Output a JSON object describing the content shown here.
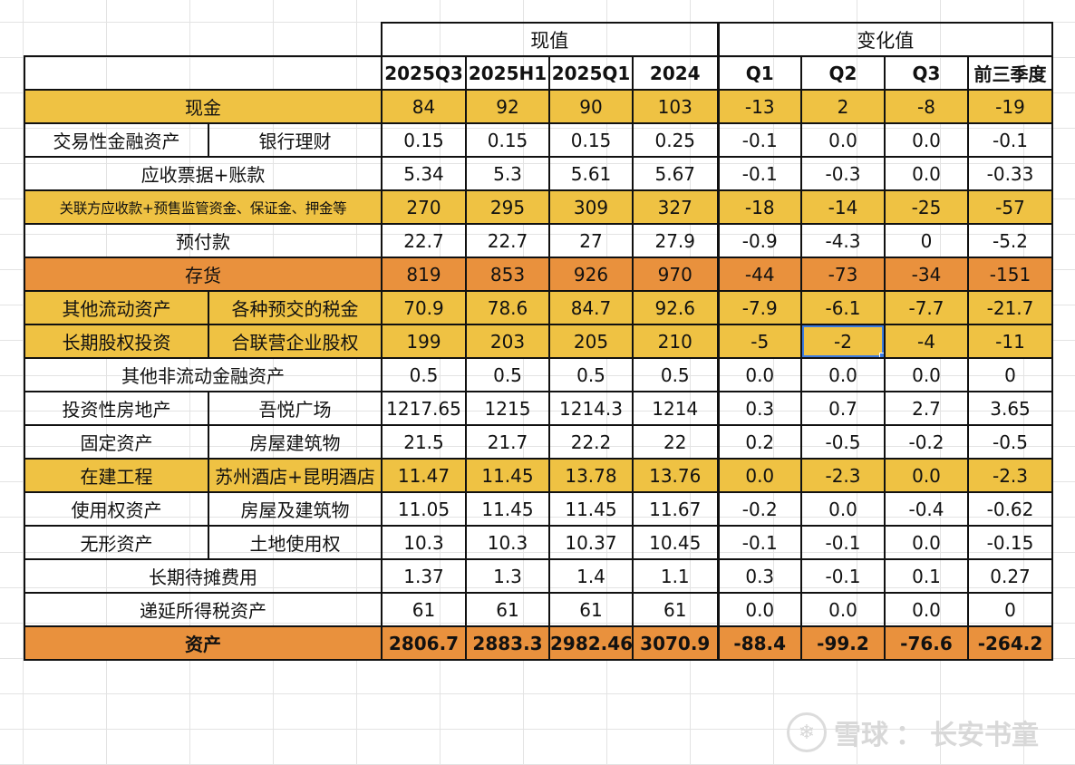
{
  "header": {
    "group_current": "现值",
    "group_change": "变化值",
    "columns": [
      "2025Q3",
      "2025H1",
      "2025Q1",
      "2024",
      "Q1",
      "Q2",
      "Q3",
      "前三季度"
    ]
  },
  "rows": [
    {
      "style": "y",
      "label": "现金",
      "values": [
        "84",
        "92",
        "90",
        "103",
        "-13",
        "2",
        "-8",
        "-19"
      ]
    },
    {
      "style": "w",
      "label": "交易性金融资产",
      "sub": "银行理财",
      "values": [
        "0.15",
        "0.15",
        "0.15",
        "0.25",
        "-0.1",
        "0.0",
        "0.0",
        "-0.1"
      ]
    },
    {
      "style": "w",
      "label": "应收票据+账款",
      "values": [
        "5.34",
        "5.3",
        "5.61",
        "5.67",
        "-0.1",
        "-0.3",
        "0.0",
        "-0.33"
      ]
    },
    {
      "style": "y",
      "label": "关联方应收款+预售监管资金、保证金、押金等",
      "small": true,
      "values": [
        "270",
        "295",
        "309",
        "327",
        "-18",
        "-14",
        "-25",
        "-57"
      ]
    },
    {
      "style": "w",
      "label": "预付款",
      "values": [
        "22.7",
        "22.7",
        "27",
        "27.9",
        "-0.9",
        "-4.3",
        "0",
        "-5.2"
      ]
    },
    {
      "style": "o",
      "label": "存货",
      "values": [
        "819",
        "853",
        "926",
        "970",
        "-44",
        "-73",
        "-34",
        "-151"
      ]
    },
    {
      "style": "y",
      "label": "其他流动资产",
      "sub": "各种预交的税金",
      "values": [
        "70.9",
        "78.6",
        "84.7",
        "92.6",
        "-7.9",
        "-6.1",
        "-7.7",
        "-21.7"
      ]
    },
    {
      "style": "y",
      "label": "长期股权投资",
      "sub": "合联营企业股权",
      "values": [
        "199",
        "203",
        "205",
        "210",
        "-5",
        "-2",
        "-4",
        "-11"
      ]
    },
    {
      "style": "w",
      "label": "其他非流动金融资产",
      "values": [
        "0.5",
        "0.5",
        "0.5",
        "0.5",
        "0.0",
        "0.0",
        "0.0",
        "0"
      ]
    },
    {
      "style": "w",
      "label": "投资性房地产",
      "sub": "吾悦广场",
      "values": [
        "1217.65",
        "1215",
        "1214.3",
        "1214",
        "0.3",
        "0.7",
        "2.7",
        "3.65"
      ]
    },
    {
      "style": "w",
      "label": "固定资产",
      "sub": "房屋建筑物",
      "values": [
        "21.5",
        "21.7",
        "22.2",
        "22",
        "0.2",
        "-0.5",
        "-0.2",
        "-0.5"
      ]
    },
    {
      "style": "y",
      "label": "在建工程",
      "sub": "苏州酒店+昆明酒店",
      "values": [
        "11.47",
        "11.45",
        "13.78",
        "13.76",
        "0.0",
        "-2.3",
        "0.0",
        "-2.3"
      ]
    },
    {
      "style": "w",
      "label": "使用权资产",
      "sub": "房屋及建筑物",
      "values": [
        "11.05",
        "11.45",
        "11.45",
        "11.67",
        "-0.2",
        "0.0",
        "-0.4",
        "-0.62"
      ]
    },
    {
      "style": "w",
      "label": "无形资产",
      "sub": "土地使用权",
      "values": [
        "10.3",
        "10.3",
        "10.37",
        "10.45",
        "-0.1",
        "-0.1",
        "0.0",
        "-0.15"
      ]
    },
    {
      "style": "w",
      "label": "长期待摊费用",
      "values": [
        "1.37",
        "1.3",
        "1.4",
        "1.1",
        "0.3",
        "-0.1",
        "0.1",
        "0.27"
      ]
    },
    {
      "style": "w",
      "label": "递延所得税资产",
      "values": [
        "61",
        "61",
        "61",
        "61",
        "0.0",
        "0.0",
        "0.0",
        "0"
      ]
    },
    {
      "style": "o",
      "label": "资产",
      "total": true,
      "values": [
        "2806.7",
        "2883.3",
        "2982.46",
        "3070.9",
        "-88.4",
        "-99.2",
        "-76.6",
        "-264.2"
      ]
    }
  ],
  "selection": {
    "row": 7,
    "col": 5
  },
  "watermark": {
    "brand": "雪球",
    "sep": "：",
    "author": "长安书童"
  },
  "colors": {
    "yellow": "#efc243",
    "orange": "#e9913d",
    "selection": "#3d7ce0"
  }
}
